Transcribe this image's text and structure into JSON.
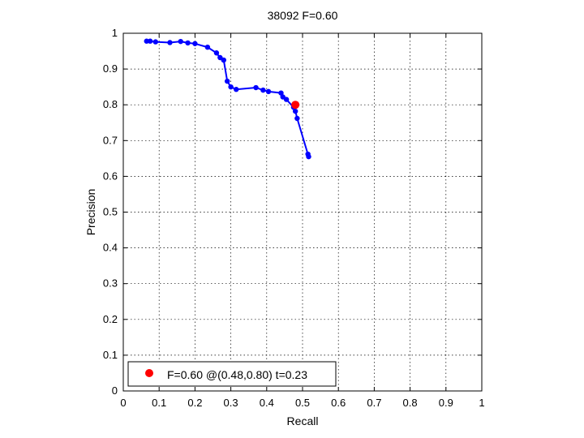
{
  "chart_data": {
    "type": "line",
    "title": "38092 F=0.60",
    "xlabel": "Recall",
    "ylabel": "Precision",
    "xlim": [
      0,
      1
    ],
    "ylim": [
      0,
      1
    ],
    "grid": true,
    "xticks": [
      "0",
      "0.1",
      "0.2",
      "0.3",
      "0.4",
      "0.5",
      "0.6",
      "0.7",
      "0.8",
      "0.9",
      "1"
    ],
    "yticks": [
      "0",
      "0.1",
      "0.2",
      "0.3",
      "0.4",
      "0.5",
      "0.6",
      "0.7",
      "0.8",
      "0.9",
      "1"
    ],
    "series": [
      {
        "color": "#0000ff",
        "x": [
          0.065,
          0.075,
          0.09,
          0.13,
          0.16,
          0.18,
          0.2,
          0.235,
          0.26,
          0.27,
          0.28,
          0.29,
          0.3,
          0.315,
          0.37,
          0.39,
          0.405,
          0.44,
          0.445,
          0.455,
          0.475,
          0.48,
          0.485,
          0.515,
          0.517
        ],
        "y": [
          0.978,
          0.978,
          0.976,
          0.974,
          0.977,
          0.973,
          0.971,
          0.961,
          0.945,
          0.932,
          0.925,
          0.866,
          0.85,
          0.843,
          0.848,
          0.841,
          0.837,
          0.833,
          0.822,
          0.815,
          0.793,
          0.782,
          0.762,
          0.662,
          0.655
        ]
      }
    ],
    "best_point": {
      "x": 0.48,
      "y": 0.8,
      "color": "#ff0000"
    },
    "legend": {
      "position": "bottom-left",
      "text": "F=0.60 @(0.48,0.80) t=0.23"
    }
  }
}
